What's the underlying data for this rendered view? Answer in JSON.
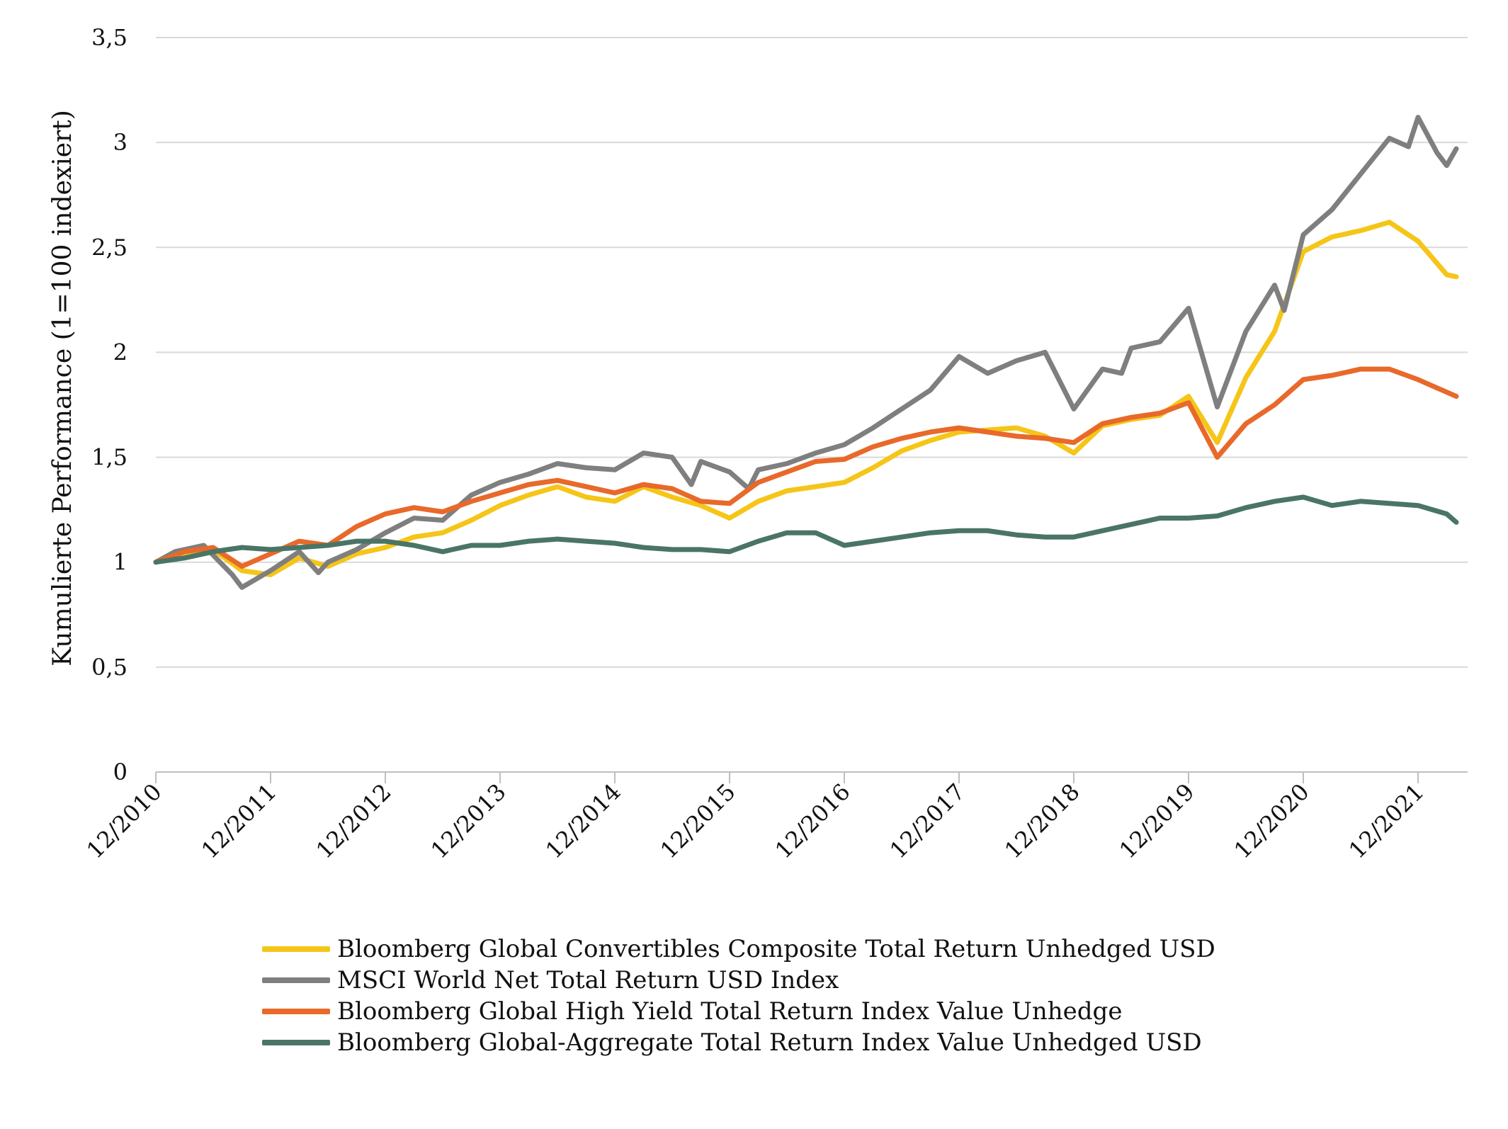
{
  "chart_data": {
    "type": "line",
    "ylabel": "Kumulierte Performance (1=100 indexiert)",
    "xlabel": "",
    "title": "",
    "ylim": [
      0,
      3.5
    ],
    "y_ticks": [
      "0",
      "0,5",
      "1",
      "1,5",
      "2",
      "2,5",
      "3",
      "3,5"
    ],
    "y_tick_values": [
      0,
      0.5,
      1,
      1.5,
      2,
      2.5,
      3,
      3.5
    ],
    "x_ticks": [
      "12/2010",
      "12/2011",
      "12/2012",
      "12/2013",
      "12/2014",
      "12/2015",
      "12/2016",
      "12/2017",
      "12/2018",
      "12/2019",
      "12/2020",
      "12/2021"
    ],
    "x_start": "12/2010",
    "x_end": "04/2022",
    "grid": "horizontal",
    "legend_position": "bottom",
    "series": [
      {
        "name": "Bloomberg Global Convertibles Composite Total Return Unhedged USD",
        "color": "#F5C518",
        "points": [
          [
            "12/2010",
            1.0
          ],
          [
            "06/2011",
            1.06
          ],
          [
            "09/2011",
            0.96
          ],
          [
            "12/2011",
            0.94
          ],
          [
            "03/2012",
            1.02
          ],
          [
            "06/2012",
            0.98
          ],
          [
            "09/2012",
            1.04
          ],
          [
            "12/2012",
            1.07
          ],
          [
            "03/2013",
            1.12
          ],
          [
            "06/2013",
            1.14
          ],
          [
            "09/2013",
            1.2
          ],
          [
            "12/2013",
            1.27
          ],
          [
            "03/2014",
            1.32
          ],
          [
            "06/2014",
            1.36
          ],
          [
            "09/2014",
            1.31
          ],
          [
            "12/2014",
            1.29
          ],
          [
            "03/2015",
            1.36
          ],
          [
            "06/2015",
            1.31
          ],
          [
            "09/2015",
            1.27
          ],
          [
            "12/2015",
            1.21
          ],
          [
            "03/2016",
            1.29
          ],
          [
            "06/2016",
            1.34
          ],
          [
            "09/2016",
            1.36
          ],
          [
            "12/2016",
            1.38
          ],
          [
            "03/2017",
            1.45
          ],
          [
            "06/2017",
            1.53
          ],
          [
            "09/2017",
            1.58
          ],
          [
            "12/2017",
            1.62
          ],
          [
            "03/2018",
            1.63
          ],
          [
            "06/2018",
            1.64
          ],
          [
            "09/2018",
            1.6
          ],
          [
            "12/2018",
            1.52
          ],
          [
            "03/2019",
            1.65
          ],
          [
            "06/2019",
            1.68
          ],
          [
            "09/2019",
            1.7
          ],
          [
            "12/2019",
            1.79
          ],
          [
            "03/2020",
            1.57
          ],
          [
            "06/2020",
            1.88
          ],
          [
            "09/2020",
            2.1
          ],
          [
            "12/2020",
            2.48
          ],
          [
            "03/2021",
            2.55
          ],
          [
            "06/2021",
            2.58
          ],
          [
            "09/2021",
            2.62
          ],
          [
            "12/2021",
            2.53
          ],
          [
            "03/2022",
            2.37
          ],
          [
            "04/2022",
            2.36
          ]
        ]
      },
      {
        "name": "MSCI World Net Total Return USD Index",
        "color": "#7F7F7F",
        "points": [
          [
            "12/2010",
            1.0
          ],
          [
            "02/2011",
            1.05
          ],
          [
            "05/2011",
            1.08
          ],
          [
            "08/2011",
            0.94
          ],
          [
            "09/2011",
            0.88
          ],
          [
            "12/2011",
            0.96
          ],
          [
            "03/2012",
            1.05
          ],
          [
            "05/2012",
            0.95
          ],
          [
            "06/2012",
            1.0
          ],
          [
            "09/2012",
            1.06
          ],
          [
            "12/2012",
            1.14
          ],
          [
            "03/2013",
            1.21
          ],
          [
            "06/2013",
            1.2
          ],
          [
            "09/2013",
            1.32
          ],
          [
            "12/2013",
            1.38
          ],
          [
            "03/2014",
            1.42
          ],
          [
            "06/2014",
            1.47
          ],
          [
            "09/2014",
            1.45
          ],
          [
            "12/2014",
            1.44
          ],
          [
            "03/2015",
            1.52
          ],
          [
            "06/2015",
            1.5
          ],
          [
            "08/2015",
            1.37
          ],
          [
            "09/2015",
            1.48
          ],
          [
            "12/2015",
            1.43
          ],
          [
            "02/2016",
            1.35
          ],
          [
            "03/2016",
            1.44
          ],
          [
            "06/2016",
            1.47
          ],
          [
            "09/2016",
            1.52
          ],
          [
            "12/2016",
            1.56
          ],
          [
            "03/2017",
            1.64
          ],
          [
            "06/2017",
            1.73
          ],
          [
            "09/2017",
            1.82
          ],
          [
            "12/2017",
            1.98
          ],
          [
            "03/2018",
            1.9
          ],
          [
            "06/2018",
            1.96
          ],
          [
            "09/2018",
            2.0
          ],
          [
            "12/2018",
            1.73
          ],
          [
            "03/2019",
            1.92
          ],
          [
            "05/2019",
            1.9
          ],
          [
            "06/2019",
            2.02
          ],
          [
            "09/2019",
            2.05
          ],
          [
            "12/2019",
            2.21
          ],
          [
            "03/2020",
            1.74
          ],
          [
            "06/2020",
            2.1
          ],
          [
            "09/2020",
            2.32
          ],
          [
            "10/2020",
            2.2
          ],
          [
            "12/2020",
            2.56
          ],
          [
            "03/2021",
            2.68
          ],
          [
            "06/2021",
            2.85
          ],
          [
            "09/2021",
            3.02
          ],
          [
            "11/2021",
            2.98
          ],
          [
            "12/2021",
            3.12
          ],
          [
            "02/2022",
            2.95
          ],
          [
            "03/2022",
            2.89
          ],
          [
            "04/2022",
            2.97
          ]
        ]
      },
      {
        "name": "Bloomberg Global High Yield Total Return Index Value Unhedge",
        "color": "#E8692A",
        "points": [
          [
            "12/2010",
            1.0
          ],
          [
            "03/2011",
            1.05
          ],
          [
            "06/2011",
            1.07
          ],
          [
            "09/2011",
            0.98
          ],
          [
            "12/2011",
            1.04
          ],
          [
            "03/2012",
            1.1
          ],
          [
            "06/2012",
            1.08
          ],
          [
            "09/2012",
            1.17
          ],
          [
            "12/2012",
            1.23
          ],
          [
            "03/2013",
            1.26
          ],
          [
            "06/2013",
            1.24
          ],
          [
            "09/2013",
            1.29
          ],
          [
            "12/2013",
            1.33
          ],
          [
            "03/2014",
            1.37
          ],
          [
            "06/2014",
            1.39
          ],
          [
            "09/2014",
            1.36
          ],
          [
            "12/2014",
            1.33
          ],
          [
            "03/2015",
            1.37
          ],
          [
            "06/2015",
            1.35
          ],
          [
            "09/2015",
            1.29
          ],
          [
            "12/2015",
            1.28
          ],
          [
            "03/2016",
            1.38
          ],
          [
            "06/2016",
            1.43
          ],
          [
            "09/2016",
            1.48
          ],
          [
            "12/2016",
            1.49
          ],
          [
            "03/2017",
            1.55
          ],
          [
            "06/2017",
            1.59
          ],
          [
            "09/2017",
            1.62
          ],
          [
            "12/2017",
            1.64
          ],
          [
            "03/2018",
            1.62
          ],
          [
            "06/2018",
            1.6
          ],
          [
            "09/2018",
            1.59
          ],
          [
            "12/2018",
            1.57
          ],
          [
            "03/2019",
            1.66
          ],
          [
            "06/2019",
            1.69
          ],
          [
            "09/2019",
            1.71
          ],
          [
            "12/2019",
            1.76
          ],
          [
            "03/2020",
            1.5
          ],
          [
            "06/2020",
            1.66
          ],
          [
            "09/2020",
            1.75
          ],
          [
            "12/2020",
            1.87
          ],
          [
            "03/2021",
            1.89
          ],
          [
            "06/2021",
            1.92
          ],
          [
            "09/2021",
            1.92
          ],
          [
            "12/2021",
            1.87
          ],
          [
            "03/2022",
            1.81
          ],
          [
            "04/2022",
            1.79
          ]
        ]
      },
      {
        "name": "Bloomberg Global-Aggregate Total Return Index Value Unhedged USD",
        "color": "#4A7566",
        "points": [
          [
            "12/2010",
            1.0
          ],
          [
            "03/2011",
            1.02
          ],
          [
            "06/2011",
            1.05
          ],
          [
            "09/2011",
            1.07
          ],
          [
            "12/2011",
            1.06
          ],
          [
            "03/2012",
            1.07
          ],
          [
            "06/2012",
            1.08
          ],
          [
            "09/2012",
            1.1
          ],
          [
            "12/2012",
            1.1
          ],
          [
            "03/2013",
            1.08
          ],
          [
            "06/2013",
            1.05
          ],
          [
            "09/2013",
            1.08
          ],
          [
            "12/2013",
            1.08
          ],
          [
            "03/2014",
            1.1
          ],
          [
            "06/2014",
            1.11
          ],
          [
            "09/2014",
            1.1
          ],
          [
            "12/2014",
            1.09
          ],
          [
            "03/2015",
            1.07
          ],
          [
            "06/2015",
            1.06
          ],
          [
            "09/2015",
            1.06
          ],
          [
            "12/2015",
            1.05
          ],
          [
            "03/2016",
            1.1
          ],
          [
            "06/2016",
            1.14
          ],
          [
            "09/2016",
            1.14
          ],
          [
            "12/2016",
            1.08
          ],
          [
            "03/2017",
            1.1
          ],
          [
            "06/2017",
            1.12
          ],
          [
            "09/2017",
            1.14
          ],
          [
            "12/2017",
            1.15
          ],
          [
            "03/2018",
            1.15
          ],
          [
            "06/2018",
            1.13
          ],
          [
            "09/2018",
            1.12
          ],
          [
            "12/2018",
            1.12
          ],
          [
            "03/2019",
            1.15
          ],
          [
            "06/2019",
            1.18
          ],
          [
            "09/2019",
            1.21
          ],
          [
            "12/2019",
            1.21
          ],
          [
            "03/2020",
            1.22
          ],
          [
            "06/2020",
            1.26
          ],
          [
            "09/2020",
            1.29
          ],
          [
            "12/2020",
            1.31
          ],
          [
            "03/2021",
            1.27
          ],
          [
            "06/2021",
            1.29
          ],
          [
            "09/2021",
            1.28
          ],
          [
            "12/2021",
            1.27
          ],
          [
            "03/2022",
            1.23
          ],
          [
            "04/2022",
            1.19
          ]
        ]
      }
    ]
  }
}
